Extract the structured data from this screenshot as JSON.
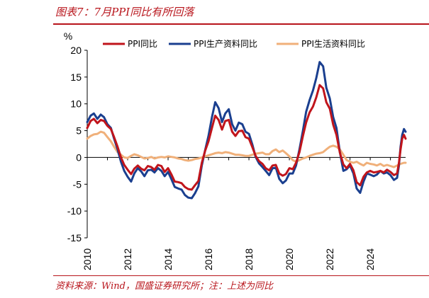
{
  "header": {
    "title": "图表7：7月PPI同比有所回落"
  },
  "footer": {
    "source": "资料来源：Wind，国盛证券研究所；注：上述为同比"
  },
  "chart_data": {
    "type": "line",
    "title": "",
    "ylabel": "%",
    "ylim": [
      -15,
      20
    ],
    "yticks": [
      -15,
      -10,
      -5,
      0,
      5,
      10,
      15,
      20
    ],
    "xlim": [
      2010,
      2025.75
    ],
    "xticks": [
      "2010",
      "2012",
      "2014",
      "2016",
      "2018",
      "2020",
      "2022",
      "2024"
    ],
    "grid": false,
    "legend_position": "top",
    "series": [
      {
        "name": "PPI同比",
        "color": "#c0141b",
        "points": [
          [
            2010.0,
            5.5
          ],
          [
            2010.17,
            6.8
          ],
          [
            2010.33,
            7.2
          ],
          [
            2010.5,
            6.4
          ],
          [
            2010.67,
            7.0
          ],
          [
            2010.83,
            6.8
          ],
          [
            2011.0,
            5.9
          ],
          [
            2011.17,
            5.3
          ],
          [
            2011.33,
            3.8
          ],
          [
            2011.5,
            2.0
          ],
          [
            2011.67,
            0.0
          ],
          [
            2011.83,
            -1.4
          ],
          [
            2012.0,
            -2.3
          ],
          [
            2012.17,
            -3.1
          ],
          [
            2012.33,
            -2.1
          ],
          [
            2012.5,
            -1.5
          ],
          [
            2012.67,
            -2.1
          ],
          [
            2012.83,
            -2.4
          ],
          [
            2013.0,
            -1.6
          ],
          [
            2013.17,
            -1.8
          ],
          [
            2013.33,
            -2.3
          ],
          [
            2013.5,
            -1.4
          ],
          [
            2013.67,
            -1.6
          ],
          [
            2013.83,
            -2.7
          ],
          [
            2014.0,
            -2.0
          ],
          [
            2014.17,
            -3.2
          ],
          [
            2014.33,
            -4.5
          ],
          [
            2014.5,
            -4.6
          ],
          [
            2014.67,
            -4.8
          ],
          [
            2014.83,
            -5.5
          ],
          [
            2015.0,
            -5.9
          ],
          [
            2015.17,
            -6.0
          ],
          [
            2015.33,
            -5.2
          ],
          [
            2015.5,
            -4.4
          ],
          [
            2015.67,
            -1.0
          ],
          [
            2015.83,
            1.2
          ],
          [
            2016.0,
            3.0
          ],
          [
            2016.17,
            5.5
          ],
          [
            2016.33,
            7.8
          ],
          [
            2016.5,
            7.0
          ],
          [
            2016.67,
            5.2
          ],
          [
            2016.83,
            6.8
          ],
          [
            2017.0,
            7.0
          ],
          [
            2017.17,
            4.8
          ],
          [
            2017.33,
            4.0
          ],
          [
            2017.5,
            4.9
          ],
          [
            2017.67,
            5.0
          ],
          [
            2017.83,
            3.8
          ],
          [
            2018.0,
            3.5
          ],
          [
            2018.17,
            1.9
          ],
          [
            2018.33,
            0.3
          ],
          [
            2018.5,
            -0.7
          ],
          [
            2018.67,
            -1.2
          ],
          [
            2018.83,
            -2.0
          ],
          [
            2019.0,
            -2.4
          ],
          [
            2019.17,
            -1.5
          ],
          [
            2019.33,
            -1.4
          ],
          [
            2019.5,
            -3.0
          ],
          [
            2019.67,
            -3.4
          ],
          [
            2019.83,
            -3.1
          ],
          [
            2020.0,
            -2.0
          ],
          [
            2020.17,
            -2.2
          ],
          [
            2020.33,
            -1.0
          ],
          [
            2020.5,
            1.0
          ],
          [
            2020.67,
            4.0
          ],
          [
            2020.83,
            6.5
          ],
          [
            2021.0,
            8.4
          ],
          [
            2021.17,
            9.5
          ],
          [
            2021.33,
            11.2
          ],
          [
            2021.5,
            13.5
          ],
          [
            2021.67,
            12.9
          ],
          [
            2021.83,
            10.3
          ],
          [
            2022.0,
            9.1
          ],
          [
            2022.17,
            6.1
          ],
          [
            2022.33,
            4.2
          ],
          [
            2022.5,
            0.9
          ],
          [
            2022.67,
            -1.3
          ],
          [
            2022.83,
            -2.0
          ],
          [
            2023.0,
            -1.2
          ],
          [
            2023.17,
            -2.4
          ],
          [
            2023.33,
            -4.6
          ],
          [
            2023.5,
            -5.2
          ],
          [
            2023.67,
            -3.6
          ],
          [
            2023.83,
            -2.8
          ],
          [
            2024.0,
            -2.5
          ],
          [
            2024.17,
            -2.8
          ],
          [
            2024.33,
            -2.7
          ],
          [
            2024.5,
            -2.5
          ],
          [
            2024.67,
            -2.8
          ],
          [
            2024.83,
            -2.3
          ],
          [
            2025.0,
            -2.7
          ],
          [
            2025.17,
            -3.3
          ],
          [
            2025.33,
            -3.0
          ],
          [
            2025.42,
            -1.0
          ],
          [
            2025.5,
            1.5
          ],
          [
            2025.58,
            3.5
          ],
          [
            2025.67,
            4.2
          ],
          [
            2025.75,
            3.5
          ]
        ]
      },
      {
        "name": "PPI生产资料同比",
        "color": "#1a3f8f",
        "points": [
          [
            2010.0,
            6.6
          ],
          [
            2010.17,
            7.8
          ],
          [
            2010.33,
            8.2
          ],
          [
            2010.5,
            7.2
          ],
          [
            2010.67,
            8.0
          ],
          [
            2010.83,
            7.5
          ],
          [
            2011.0,
            6.2
          ],
          [
            2011.17,
            5.5
          ],
          [
            2011.33,
            3.5
          ],
          [
            2011.5,
            1.5
          ],
          [
            2011.67,
            -0.8
          ],
          [
            2011.83,
            -2.5
          ],
          [
            2012.0,
            -3.6
          ],
          [
            2012.17,
            -4.5
          ],
          [
            2012.33,
            -3.0
          ],
          [
            2012.5,
            -2.0
          ],
          [
            2012.67,
            -2.6
          ],
          [
            2012.83,
            -3.5
          ],
          [
            2013.0,
            -2.4
          ],
          [
            2013.17,
            -2.3
          ],
          [
            2013.33,
            -2.8
          ],
          [
            2013.5,
            -2.0
          ],
          [
            2013.67,
            -2.5
          ],
          [
            2013.83,
            -3.5
          ],
          [
            2014.0,
            -2.7
          ],
          [
            2014.17,
            -4.1
          ],
          [
            2014.33,
            -5.5
          ],
          [
            2014.5,
            -5.8
          ],
          [
            2014.67,
            -6.0
          ],
          [
            2014.83,
            -7.0
          ],
          [
            2015.0,
            -7.5
          ],
          [
            2015.17,
            -7.6
          ],
          [
            2015.33,
            -6.7
          ],
          [
            2015.5,
            -5.4
          ],
          [
            2015.67,
            -1.5
          ],
          [
            2015.83,
            1.3
          ],
          [
            2016.0,
            4.0
          ],
          [
            2016.17,
            7.5
          ],
          [
            2016.33,
            10.3
          ],
          [
            2016.5,
            9.2
          ],
          [
            2016.67,
            6.6
          ],
          [
            2016.83,
            8.2
          ],
          [
            2017.0,
            9.0
          ],
          [
            2017.17,
            6.2
          ],
          [
            2017.33,
            5.0
          ],
          [
            2017.5,
            6.5
          ],
          [
            2017.67,
            6.2
          ],
          [
            2017.83,
            4.8
          ],
          [
            2018.0,
            4.4
          ],
          [
            2018.17,
            2.4
          ],
          [
            2018.33,
            0.1
          ],
          [
            2018.5,
            -1.1
          ],
          [
            2018.67,
            -1.8
          ],
          [
            2018.83,
            -2.5
          ],
          [
            2019.0,
            -3.3
          ],
          [
            2019.17,
            -2.0
          ],
          [
            2019.33,
            -1.9
          ],
          [
            2019.5,
            -4.0
          ],
          [
            2019.67,
            -4.8
          ],
          [
            2019.83,
            -4.3
          ],
          [
            2020.0,
            -3.0
          ],
          [
            2020.17,
            -3.0
          ],
          [
            2020.33,
            -1.5
          ],
          [
            2020.5,
            1.5
          ],
          [
            2020.67,
            5.0
          ],
          [
            2020.83,
            8.5
          ],
          [
            2021.0,
            10.7
          ],
          [
            2021.17,
            12.5
          ],
          [
            2021.33,
            14.8
          ],
          [
            2021.5,
            17.8
          ],
          [
            2021.67,
            17.0
          ],
          [
            2021.83,
            13.0
          ],
          [
            2022.0,
            11.0
          ],
          [
            2022.17,
            7.5
          ],
          [
            2022.33,
            5.5
          ],
          [
            2022.5,
            1.0
          ],
          [
            2022.67,
            -2.5
          ],
          [
            2022.83,
            -2.2
          ],
          [
            2023.0,
            -1.5
          ],
          [
            2023.17,
            -3.0
          ],
          [
            2023.33,
            -5.8
          ],
          [
            2023.5,
            -6.6
          ],
          [
            2023.67,
            -4.5
          ],
          [
            2023.83,
            -3.0
          ],
          [
            2024.0,
            -3.2
          ],
          [
            2024.17,
            -3.5
          ],
          [
            2024.33,
            -3.2
          ],
          [
            2024.5,
            -2.5
          ],
          [
            2024.67,
            -3.0
          ],
          [
            2024.83,
            -2.8
          ],
          [
            2025.0,
            -3.3
          ],
          [
            2025.17,
            -4.2
          ],
          [
            2025.33,
            -3.8
          ],
          [
            2025.42,
            -1.5
          ],
          [
            2025.5,
            2.0
          ],
          [
            2025.58,
            4.2
          ],
          [
            2025.67,
            5.3
          ],
          [
            2025.75,
            4.8
          ]
        ]
      },
      {
        "name": "PPI生活资料同比",
        "color": "#f0b07a",
        "points": [
          [
            2010.0,
            3.5
          ],
          [
            2010.17,
            4.0
          ],
          [
            2010.33,
            4.3
          ],
          [
            2010.5,
            4.4
          ],
          [
            2010.67,
            4.8
          ],
          [
            2010.83,
            4.6
          ],
          [
            2011.0,
            3.8
          ],
          [
            2011.17,
            3.0
          ],
          [
            2011.33,
            2.0
          ],
          [
            2011.5,
            1.0
          ],
          [
            2011.67,
            0.5
          ],
          [
            2011.83,
            0.0
          ],
          [
            2012.0,
            -0.1
          ],
          [
            2012.17,
            0.3
          ],
          [
            2012.33,
            0.6
          ],
          [
            2012.5,
            0.4
          ],
          [
            2012.67,
            0.1
          ],
          [
            2012.83,
            -0.2
          ],
          [
            2013.0,
            -0.1
          ],
          [
            2013.17,
            0.1
          ],
          [
            2013.33,
            -0.2
          ],
          [
            2013.5,
            0.0
          ],
          [
            2013.67,
            0.1
          ],
          [
            2013.83,
            0.0
          ],
          [
            2014.0,
            0.2
          ],
          [
            2014.17,
            0.1
          ],
          [
            2014.33,
            0.0
          ],
          [
            2014.5,
            -0.2
          ],
          [
            2014.67,
            -0.3
          ],
          [
            2014.83,
            -0.5
          ],
          [
            2015.0,
            -0.6
          ],
          [
            2015.17,
            -0.5
          ],
          [
            2015.33,
            -0.3
          ],
          [
            2015.5,
            -0.2
          ],
          [
            2015.67,
            0.0
          ],
          [
            2015.83,
            0.2
          ],
          [
            2016.0,
            0.4
          ],
          [
            2016.17,
            0.6
          ],
          [
            2016.33,
            0.8
          ],
          [
            2016.5,
            0.9
          ],
          [
            2016.67,
            0.8
          ],
          [
            2016.83,
            1.0
          ],
          [
            2017.0,
            0.9
          ],
          [
            2017.17,
            0.7
          ],
          [
            2017.33,
            0.5
          ],
          [
            2017.5,
            0.5
          ],
          [
            2017.67,
            0.4
          ],
          [
            2017.83,
            0.3
          ],
          [
            2018.0,
            0.3
          ],
          [
            2018.17,
            0.5
          ],
          [
            2018.33,
            0.7
          ],
          [
            2018.5,
            0.8
          ],
          [
            2018.67,
            0.9
          ],
          [
            2018.83,
            0.6
          ],
          [
            2019.0,
            0.6
          ],
          [
            2019.17,
            1.2
          ],
          [
            2019.33,
            1.5
          ],
          [
            2019.5,
            1.0
          ],
          [
            2019.67,
            1.3
          ],
          [
            2019.83,
            0.8
          ],
          [
            2020.0,
            0.2
          ],
          [
            2020.17,
            -0.5
          ],
          [
            2020.33,
            -0.8
          ],
          [
            2020.5,
            -0.5
          ],
          [
            2020.67,
            -0.2
          ],
          [
            2020.83,
            0.0
          ],
          [
            2021.0,
            0.3
          ],
          [
            2021.17,
            0.5
          ],
          [
            2021.33,
            0.7
          ],
          [
            2021.5,
            0.8
          ],
          [
            2021.67,
            1.0
          ],
          [
            2021.83,
            1.5
          ],
          [
            2022.0,
            2.0
          ],
          [
            2022.17,
            2.2
          ],
          [
            2022.33,
            2.0
          ],
          [
            2022.5,
            1.5
          ],
          [
            2022.67,
            0.5
          ],
          [
            2022.83,
            -0.5
          ],
          [
            2023.0,
            -0.8
          ],
          [
            2023.17,
            -1.0
          ],
          [
            2023.33,
            -0.8
          ],
          [
            2023.5,
            -1.2
          ],
          [
            2023.67,
            -1.5
          ],
          [
            2023.83,
            -1.0
          ],
          [
            2024.0,
            -1.2
          ],
          [
            2024.17,
            -1.3
          ],
          [
            2024.33,
            -1.5
          ],
          [
            2024.5,
            -1.2
          ],
          [
            2024.67,
            -1.6
          ],
          [
            2024.83,
            -1.4
          ],
          [
            2025.0,
            -1.6
          ],
          [
            2025.17,
            -1.8
          ],
          [
            2025.33,
            -1.5
          ],
          [
            2025.5,
            -1.2
          ],
          [
            2025.67,
            -1.0
          ],
          [
            2025.75,
            -1.0
          ]
        ]
      }
    ]
  }
}
